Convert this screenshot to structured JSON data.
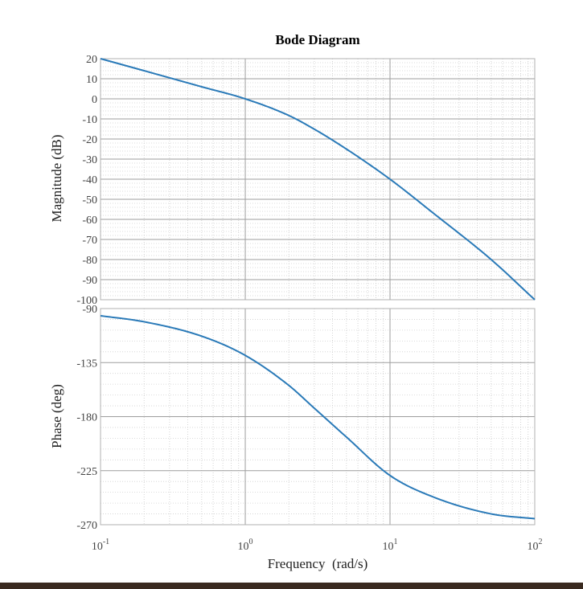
{
  "chart_data": {
    "type": "line",
    "title": "Bode Diagram",
    "xlabel": "Frequency  (rad/s)",
    "xscale": "log",
    "xlim": [
      0.1,
      100
    ],
    "x_ticks": [
      {
        "value": 0.1,
        "base": "10",
        "exp": "-1"
      },
      {
        "value": 1,
        "base": "10",
        "exp": "0"
      },
      {
        "value": 10,
        "base": "10",
        "exp": "1"
      },
      {
        "value": 100,
        "base": "10",
        "exp": "2"
      }
    ],
    "grid": true,
    "line_color": "#2a7ab8",
    "panels": [
      {
        "ylabel": "Magnitude (dB)",
        "ylim": [
          -100,
          20
        ],
        "y_ticks": [
          20,
          10,
          0,
          -10,
          -20,
          -30,
          -40,
          -50,
          -60,
          -70,
          -80,
          -90,
          -100
        ],
        "x": [
          0.1,
          0.2,
          0.5,
          1,
          2,
          3,
          5,
          10,
          20,
          50,
          100
        ],
        "y": [
          20,
          14,
          6,
          0,
          -8.3,
          -15.1,
          -25,
          -40,
          -57,
          -80,
          -100
        ]
      },
      {
        "ylabel": "Phase (deg)",
        "ylim": [
          -270,
          -90
        ],
        "y_ticks": [
          -90,
          -135,
          -180,
          -225,
          -270
        ],
        "x": [
          0.1,
          0.2,
          0.5,
          1,
          2,
          3,
          5,
          10,
          20,
          50,
          100
        ],
        "y": [
          -96,
          -101,
          -113,
          -129,
          -154,
          -173,
          -197,
          -229,
          -247,
          -261,
          -265
        ]
      }
    ]
  }
}
